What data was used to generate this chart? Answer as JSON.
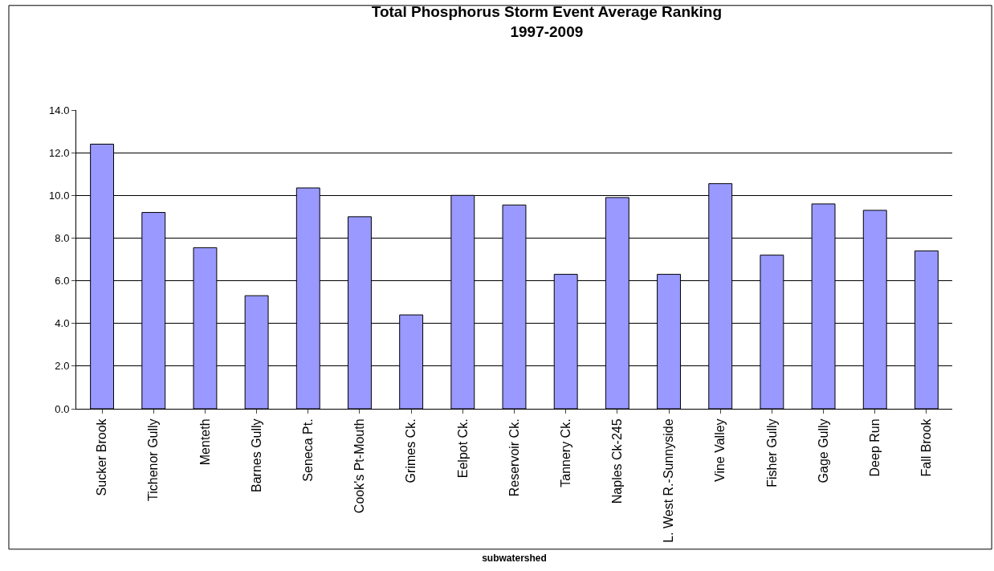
{
  "chart_data": {
    "type": "bar",
    "title": "Total Phosphorus Storm Event Average Ranking\n1997-2009",
    "xlabel": "subwatershed",
    "categories": [
      "Sucker Brook",
      "Tichenor Gully",
      "Menteth",
      "Barnes Gully",
      "Seneca Pt.",
      "Cook's Pt-Mouth",
      "Grimes Ck.",
      "Eelpot Ck.",
      "Reservoir Ck.",
      "Tannery Ck.",
      "Naples Ck-245",
      "L. West R.-Sunnyside",
      "Vine Valley",
      "Fisher Gully",
      "Gage Gully",
      "Deep Run",
      "Fall Brook"
    ],
    "values": [
      12.4,
      9.2,
      7.55,
      5.3,
      10.35,
      9.0,
      4.4,
      10.0,
      9.55,
      6.3,
      9.9,
      6.3,
      10.55,
      7.2,
      9.6,
      9.3,
      7.4
    ],
    "color": "#9999ff",
    "ylim": [
      0,
      14
    ],
    "yticks": [
      {
        "value": 0,
        "label": "0.0"
      },
      {
        "value": 2,
        "label": "2.0"
      },
      {
        "value": 4,
        "label": "4.0"
      },
      {
        "value": 6,
        "label": "6.0"
      },
      {
        "value": 8,
        "label": "8.0"
      },
      {
        "value": 10,
        "label": "10.0"
      },
      {
        "value": 12,
        "label": "12.0"
      },
      {
        "value": 14,
        "label": "14.0"
      }
    ],
    "grid": "y"
  }
}
